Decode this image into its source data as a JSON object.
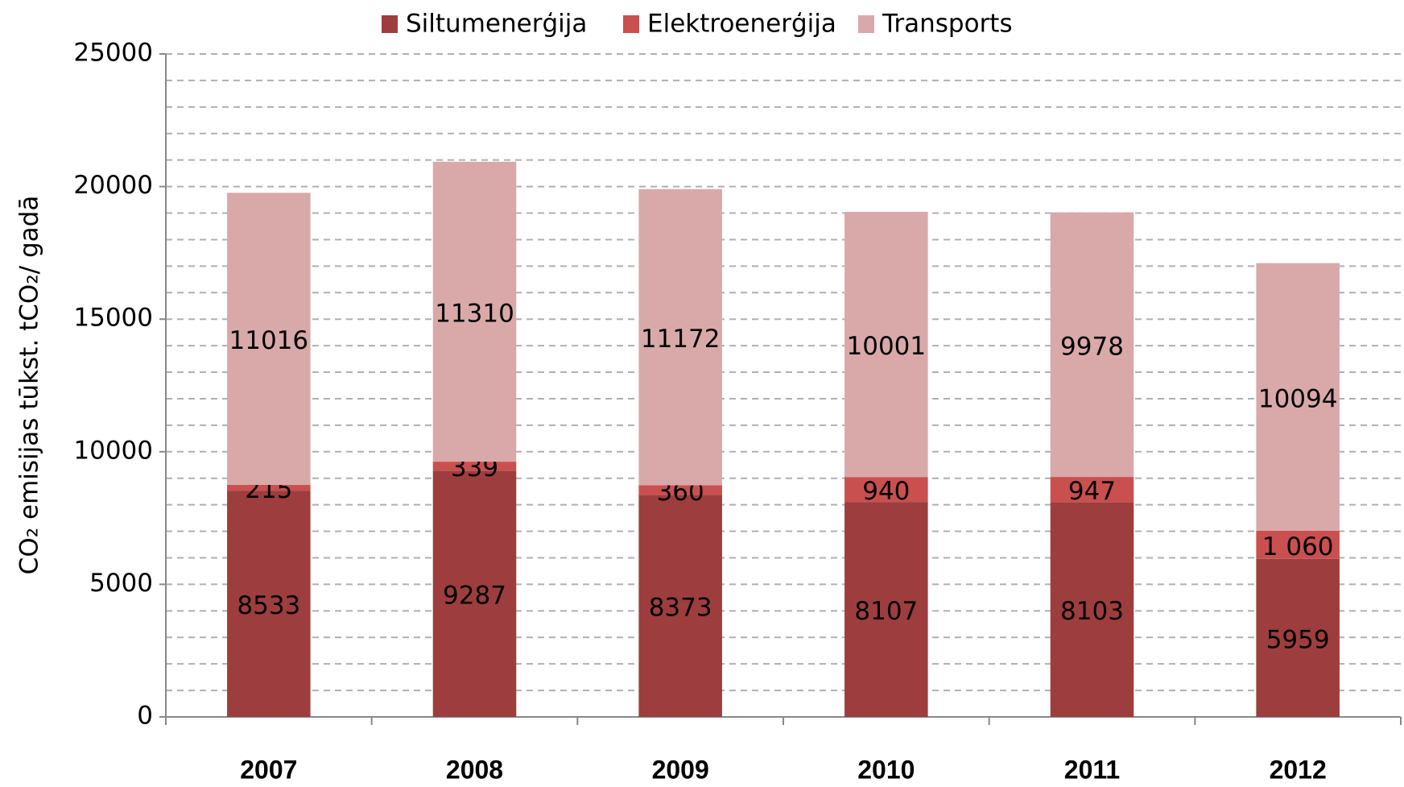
{
  "chart_data": {
    "type": "stacked_bar",
    "y_label": "CO₂ emisijas tūkst. tCO₂/ gadā",
    "categories": [
      "2007",
      "2008",
      "2009",
      "2010",
      "2011",
      "2012"
    ],
    "series": [
      {
        "name": "Siltumenerģija",
        "color": "#9e3d3d",
        "values": [
          8533,
          9287,
          8373,
          8107,
          8103,
          5959
        ]
      },
      {
        "name": "Elektroenerģija",
        "color": "#c9504f",
        "values": [
          215,
          339,
          360,
          940,
          947,
          1060
        ],
        "value_labels": [
          "215",
          "339",
          "360",
          "940",
          "947",
          "1 060"
        ]
      },
      {
        "name": "Transports",
        "color": "#d9a9a9",
        "values": [
          11016,
          11310,
          11172,
          10001,
          9978,
          10094
        ]
      }
    ],
    "ylim": [
      0,
      25000
    ],
    "yticks": [
      0,
      5000,
      10000,
      15000,
      20000,
      25000
    ],
    "grid": true,
    "grid_subdivisions": 5,
    "legend": "top"
  }
}
